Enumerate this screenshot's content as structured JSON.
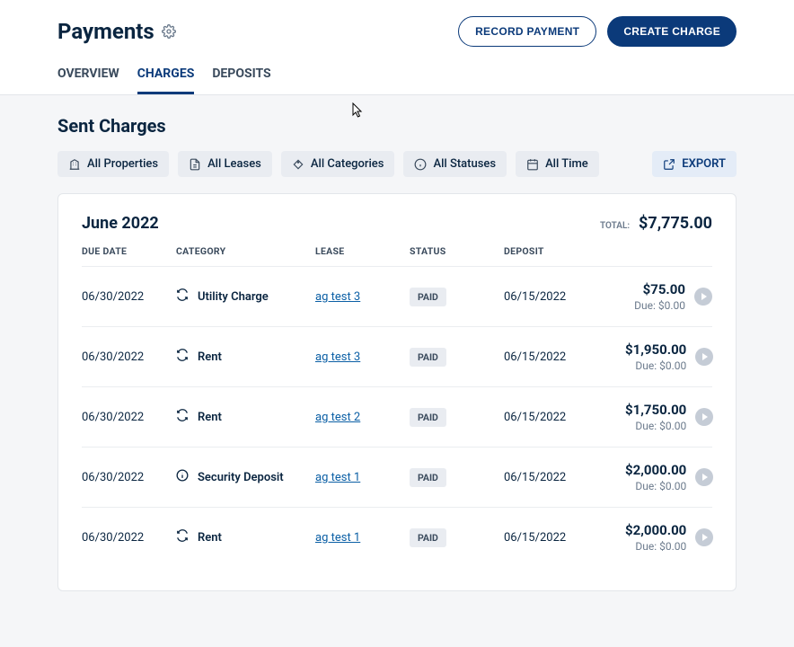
{
  "header": {
    "title": "Payments",
    "record_payment": "RECORD PAYMENT",
    "create_charge": "CREATE CHARGE"
  },
  "tabs": {
    "overview": "OVERVIEW",
    "charges": "CHARGES",
    "deposits": "DEPOSITS"
  },
  "section": {
    "title": "Sent Charges"
  },
  "filters": {
    "properties": "All Properties",
    "leases": "All Leases",
    "categories": "All Categories",
    "statuses": "All Statuses",
    "time": "All Time",
    "export": "EXPORT"
  },
  "group": {
    "period": "June 2022",
    "total_label": "TOTAL:",
    "total_value": "$7,775.00"
  },
  "columns": {
    "due_date": "DUE DATE",
    "category": "CATEGORY",
    "lease": "LEASE",
    "status": "STATUS",
    "deposit": "DEPOSIT"
  },
  "rows": [
    {
      "due_date": "06/30/2022",
      "icon": "recurring",
      "category": "Utility Charge",
      "lease": "ag test 3",
      "status": "PAID",
      "deposit": "06/15/2022",
      "amount": "$75.00",
      "due": "Due: $0.00"
    },
    {
      "due_date": "06/30/2022",
      "icon": "recurring",
      "category": "Rent",
      "lease": "ag test 3",
      "status": "PAID",
      "deposit": "06/15/2022",
      "amount": "$1,950.00",
      "due": "Due: $0.00"
    },
    {
      "due_date": "06/30/2022",
      "icon": "recurring",
      "category": "Rent",
      "lease": "ag test 2",
      "status": "PAID",
      "deposit": "06/15/2022",
      "amount": "$1,750.00",
      "due": "Due: $0.00"
    },
    {
      "due_date": "06/30/2022",
      "icon": "info",
      "category": "Security Deposit",
      "lease": "ag test 1",
      "status": "PAID",
      "deposit": "06/15/2022",
      "amount": "$2,000.00",
      "due": "Due: $0.00"
    },
    {
      "due_date": "06/30/2022",
      "icon": "recurring",
      "category": "Rent",
      "lease": "ag test 1",
      "status": "PAID",
      "deposit": "06/15/2022",
      "amount": "$2,000.00",
      "due": "Due: $0.00"
    }
  ],
  "colors": {
    "page_bg": "#f5f6f8",
    "card_bg": "#ffffff",
    "primary": "#0b3a7a",
    "text": "#0a2540",
    "muted": "#6b7a8c",
    "chip_bg": "#e9ecf1",
    "export_bg": "#e4ecf7",
    "link": "#0b5fa5",
    "border": "#e3e6ea",
    "play_bg": "#c5ccd6"
  }
}
